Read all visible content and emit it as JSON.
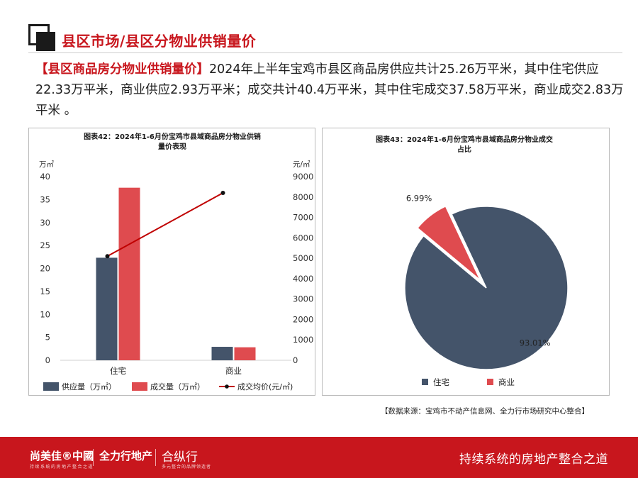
{
  "header": {
    "title": "县区市场/县区分物业供销量价"
  },
  "summary": {
    "lead": "【县区商品房分物业供销量价】",
    "text": "2024年上半年宝鸡市县区商品房供应共计25.26万平米，其中住宅供应22.33万平米，商业供应2.93万平米；成交共计40.4万平米，其中住宅成交37.58万平米，商业成交2.83万平米 。"
  },
  "chart_data": [
    {
      "type": "bar",
      "title": "图表42：2024年1-6月份宝鸡市县域商品房分物业供销量价表现",
      "categories": [
        "住宅",
        "商业"
      ],
      "series": [
        {
          "name": "供应量（万㎡）",
          "values": [
            22.33,
            2.93
          ],
          "axis": "left",
          "color": "#44546a"
        },
        {
          "name": "成交量（万㎡）",
          "values": [
            37.58,
            2.83
          ],
          "axis": "left",
          "color": "#df4b4f"
        },
        {
          "name": "成交均价(元/㎡)",
          "type": "line",
          "values": [
            5100,
            8200
          ],
          "axis": "right",
          "color": "#c00000"
        }
      ],
      "ylabel": "万㎡",
      "y2label": "元/㎡",
      "ylim": [
        0,
        40
      ],
      "y2lim": [
        0,
        9000
      ],
      "yticks": [
        "0",
        "5",
        "10",
        "15",
        "20",
        "25",
        "30",
        "35",
        "40"
      ],
      "y2ticks": [
        "0",
        "1000",
        "2000",
        "3000",
        "4000",
        "5000",
        "6000",
        "7000",
        "8000",
        "9000"
      ],
      "grid": false,
      "legend": "bottom"
    },
    {
      "type": "pie",
      "title": "图表43：2024年1-6月份宝鸡市县域商品房分物业成交占比",
      "labels": [
        "住宅",
        "商业"
      ],
      "values": [
        93.01,
        6.99
      ],
      "data_labels": [
        "93.01%",
        "6.99%"
      ],
      "colors": [
        "#44546a",
        "#df4b4f"
      ],
      "legend": "bottom"
    }
  ],
  "source": {
    "text": "【数据来源：宝鸡市不动产信息网、全力行市场研究中心整合】"
  },
  "footer": {
    "brand1": "尚美佳®中國",
    "brand1_sub": "持续系统的房地产整合之道",
    "brand2": "全力行地产",
    "brand3": "合纵行",
    "brand3_sub": "多元整合的品牌领造者",
    "slogan": "持续系统的房地产整合之道"
  }
}
